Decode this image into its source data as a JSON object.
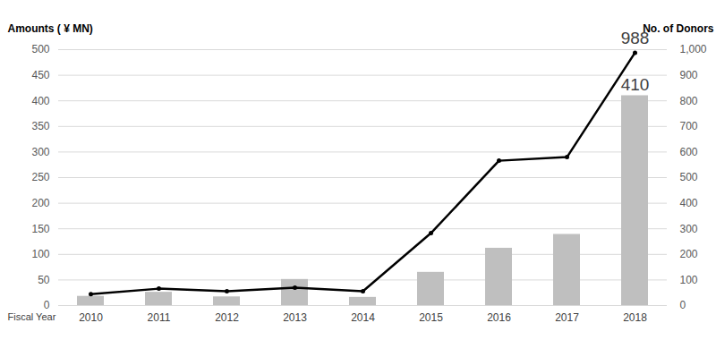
{
  "chart_data": {
    "type": "bar",
    "x_label": "Fiscal Year",
    "y_label": "Amounts ( ¥ MN)",
    "y2_label": "No. of Donors",
    "categories": [
      "2010",
      "2011",
      "2012",
      "2013",
      "2014",
      "2015",
      "2016",
      "2017",
      "2018"
    ],
    "series": [
      {
        "type": "bar",
        "color": "#bfbfbf",
        "data_labels": true,
        "values": [
          18,
          26,
          17,
          51,
          16,
          65,
          112,
          139,
          410
        ],
        "value_labels": [
          null,
          null,
          null,
          null,
          null,
          null,
          null,
          null,
          "410"
        ]
      },
      {
        "type": "line",
        "axis": "y2",
        "color": "#000000",
        "marker": "circle",
        "line_style": "solid",
        "data_labels": true,
        "values": [
          45,
          66,
          56,
          70,
          56,
          283,
          566,
          580,
          988
        ],
        "value_labels": [
          null,
          null,
          null,
          null,
          null,
          null,
          null,
          null,
          "988"
        ]
      }
    ],
    "ylim": [
      0,
      500
    ],
    "yticks": [
      0,
      50,
      100,
      150,
      200,
      250,
      300,
      350,
      400,
      450,
      500
    ],
    "y2lim": [
      0,
      1000
    ],
    "y2ticks": [
      0,
      100,
      200,
      300,
      400,
      500,
      600,
      700,
      800,
      900,
      1000
    ],
    "grid": true
  }
}
